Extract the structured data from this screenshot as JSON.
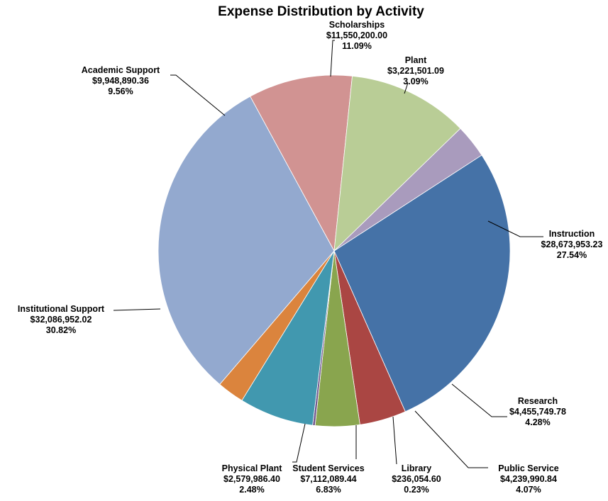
{
  "chart_data": {
    "type": "pie",
    "title": "Expense Distribution by Activity",
    "categories": [
      "Instruction",
      "Research",
      "Public Service",
      "Library",
      "Student Services",
      "Physical Plant",
      "Institutional Support",
      "Academic Support",
      "Scholarships",
      "Plant"
    ],
    "series": [
      {
        "values": [
          28673953.23,
          4455749.78,
          4239990.84,
          236054.6,
          7112089.44,
          2579986.4,
          32086952.02,
          9948890.36,
          11550200.0,
          3221501.09
        ]
      }
    ],
    "amount_labels": [
      "$28,673,953.23",
      "$4,455,749.78",
      "$4,239,990.84",
      "$236,054.60",
      "$7,112,089.44",
      "$2,579,986.40",
      "$32,086,952.02",
      "$9,948,890.36",
      "$11,550,200.00",
      "$3,221,501.09"
    ],
    "percent_labels": [
      "27.54%",
      "4.28%",
      "4.07%",
      "0.23%",
      "6.83%",
      "2.48%",
      "30.82%",
      "9.56%",
      "11.09%",
      "3.09%"
    ],
    "colors": [
      "#4572A7",
      "#AA4643",
      "#89A54E",
      "#71588F",
      "#4198AF",
      "#DB843D",
      "#93A9CF",
      "#D19392",
      "#B9CD96",
      "#A99BBD"
    ],
    "start_angle_deg": 33,
    "direction": "clockwise",
    "legend": "none"
  }
}
